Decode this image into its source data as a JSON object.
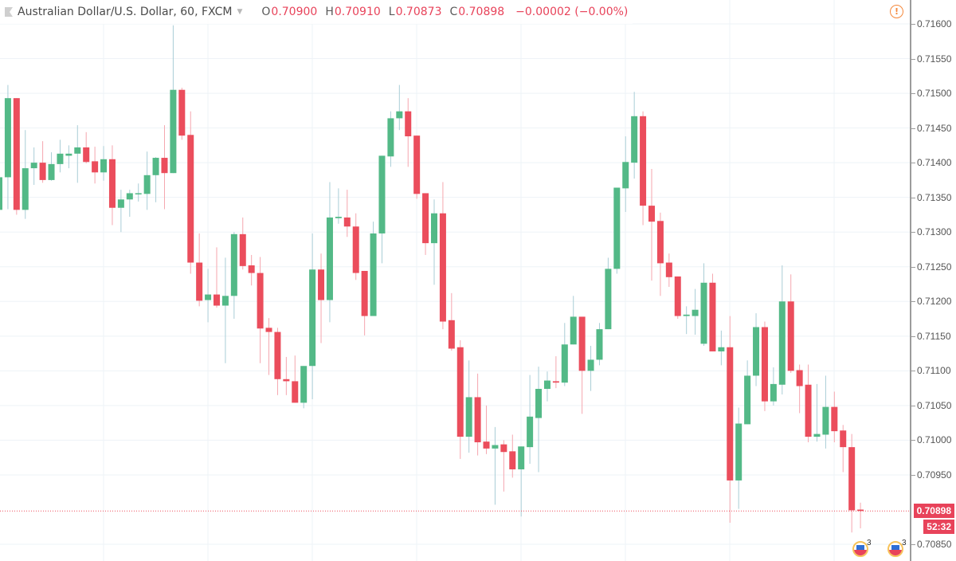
{
  "header": {
    "symbol_title": "Australian Dollar/U.S. Dollar, 60, FXCM",
    "open_label": "O",
    "open": "0.70900",
    "high_label": "H",
    "high": "0.70910",
    "low_label": "L",
    "low": "0.70873",
    "close_label": "C",
    "close": "0.70898",
    "change": "−0.00002 (−0.00%)",
    "warning_icon": "!"
  },
  "price_axis": {
    "ticks": [
      "0.71600",
      "0.71550",
      "0.71500",
      "0.71450",
      "0.71400",
      "0.71350",
      "0.71300",
      "0.71250",
      "0.71200",
      "0.71150",
      "0.71100",
      "0.71050",
      "0.71000",
      "0.70950",
      "0.70850"
    ],
    "current_price": "0.70898",
    "countdown": "52:32"
  },
  "events": [
    {
      "icon": "us-flag-icon",
      "count": "3"
    },
    {
      "icon": "us-flag-icon",
      "count": "3"
    }
  ],
  "colors": {
    "up": "#53b987",
    "down": "#eb4d5c",
    "up_wick": "#a9cdd6",
    "down_wick": "#f5a6ae",
    "grid": "#eef3f7",
    "price_line": "#eb4d5c"
  },
  "chart_data": {
    "type": "candlestick",
    "title": "Australian Dollar/U.S. Dollar, 60, FXCM",
    "interval": "60",
    "ylim": [
      0.70835,
      0.7163
    ],
    "y_ticks": [
      0.7085,
      0.7095,
      0.71,
      0.7105,
      0.711,
      0.7115,
      0.712,
      0.7125,
      0.713,
      0.7135,
      0.714,
      0.7145,
      0.715,
      0.7155,
      0.716
    ],
    "grid": true,
    "last_price": 0.70898,
    "candles": [
      {
        "o": 0.71332,
        "h": 0.714,
        "l": 0.7132,
        "c": 0.71379
      },
      {
        "o": 0.71379,
        "h": 0.71512,
        "l": 0.71333,
        "c": 0.71493
      },
      {
        "o": 0.71493,
        "h": 0.71493,
        "l": 0.71325,
        "c": 0.71332
      },
      {
        "o": 0.71332,
        "h": 0.71447,
        "l": 0.71319,
        "c": 0.71392
      },
      {
        "o": 0.71392,
        "h": 0.71422,
        "l": 0.71368,
        "c": 0.714
      },
      {
        "o": 0.714,
        "h": 0.71431,
        "l": 0.71371,
        "c": 0.71375
      },
      {
        "o": 0.71375,
        "h": 0.71415,
        "l": 0.71374,
        "c": 0.71398
      },
      {
        "o": 0.71398,
        "h": 0.71433,
        "l": 0.71386,
        "c": 0.71413
      },
      {
        "o": 0.7141,
        "h": 0.71425,
        "l": 0.71392,
        "c": 0.71413
      },
      {
        "o": 0.71413,
        "h": 0.71454,
        "l": 0.71371,
        "c": 0.71422
      },
      {
        "o": 0.71422,
        "h": 0.71444,
        "l": 0.71399,
        "c": 0.71401
      },
      {
        "o": 0.71402,
        "h": 0.71423,
        "l": 0.7137,
        "c": 0.71386
      },
      {
        "o": 0.71386,
        "h": 0.71424,
        "l": 0.71374,
        "c": 0.71405
      },
      {
        "o": 0.71405,
        "h": 0.71425,
        "l": 0.7131,
        "c": 0.71335
      },
      {
        "o": 0.71335,
        "h": 0.71361,
        "l": 0.713,
        "c": 0.71347
      },
      {
        "o": 0.71347,
        "h": 0.71361,
        "l": 0.71322,
        "c": 0.71356
      },
      {
        "o": 0.71355,
        "h": 0.7137,
        "l": 0.71344,
        "c": 0.71356
      },
      {
        "o": 0.71355,
        "h": 0.71416,
        "l": 0.71332,
        "c": 0.71382
      },
      {
        "o": 0.71382,
        "h": 0.71408,
        "l": 0.71343,
        "c": 0.71407
      },
      {
        "o": 0.71407,
        "h": 0.71454,
        "l": 0.71333,
        "c": 0.71385
      },
      {
        "o": 0.71385,
        "h": 0.71598,
        "l": 0.71385,
        "c": 0.71505
      },
      {
        "o": 0.71505,
        "h": 0.71508,
        "l": 0.71433,
        "c": 0.71439
      },
      {
        "o": 0.7144,
        "h": 0.71474,
        "l": 0.7124,
        "c": 0.71256
      },
      {
        "o": 0.71256,
        "h": 0.71298,
        "l": 0.71193,
        "c": 0.71201
      },
      {
        "o": 0.71202,
        "h": 0.71247,
        "l": 0.7117,
        "c": 0.7121
      },
      {
        "o": 0.7121,
        "h": 0.71278,
        "l": 0.71191,
        "c": 0.71194
      },
      {
        "o": 0.71194,
        "h": 0.71263,
        "l": 0.71111,
        "c": 0.71208
      },
      {
        "o": 0.71208,
        "h": 0.713,
        "l": 0.71175,
        "c": 0.71297
      },
      {
        "o": 0.71297,
        "h": 0.71321,
        "l": 0.71246,
        "c": 0.71251
      },
      {
        "o": 0.71252,
        "h": 0.71267,
        "l": 0.71223,
        "c": 0.71241
      },
      {
        "o": 0.71241,
        "h": 0.71264,
        "l": 0.71111,
        "c": 0.71161
      },
      {
        "o": 0.71162,
        "h": 0.71176,
        "l": 0.71094,
        "c": 0.71156
      },
      {
        "o": 0.71156,
        "h": 0.71162,
        "l": 0.71065,
        "c": 0.71088
      },
      {
        "o": 0.71088,
        "h": 0.7112,
        "l": 0.71065,
        "c": 0.71085
      },
      {
        "o": 0.71085,
        "h": 0.71122,
        "l": 0.71054,
        "c": 0.71054
      },
      {
        "o": 0.71054,
        "h": 0.71107,
        "l": 0.71046,
        "c": 0.71107
      },
      {
        "o": 0.71107,
        "h": 0.71298,
        "l": 0.71059,
        "c": 0.71246
      },
      {
        "o": 0.71246,
        "h": 0.71269,
        "l": 0.7114,
        "c": 0.71202
      },
      {
        "o": 0.71202,
        "h": 0.71372,
        "l": 0.7117,
        "c": 0.71321
      },
      {
        "o": 0.7132,
        "h": 0.71363,
        "l": 0.71312,
        "c": 0.71322
      },
      {
        "o": 0.71321,
        "h": 0.71361,
        "l": 0.71293,
        "c": 0.71308
      },
      {
        "o": 0.71308,
        "h": 0.71327,
        "l": 0.71231,
        "c": 0.71241
      },
      {
        "o": 0.71244,
        "h": 0.71244,
        "l": 0.71151,
        "c": 0.71179
      },
      {
        "o": 0.71179,
        "h": 0.71315,
        "l": 0.71216,
        "c": 0.71298
      },
      {
        "o": 0.71298,
        "h": 0.7141,
        "l": 0.71255,
        "c": 0.7141
      },
      {
        "o": 0.71409,
        "h": 0.71474,
        "l": 0.71394,
        "c": 0.71464
      },
      {
        "o": 0.71464,
        "h": 0.71512,
        "l": 0.71447,
        "c": 0.71474
      },
      {
        "o": 0.71474,
        "h": 0.71493,
        "l": 0.71394,
        "c": 0.71438
      },
      {
        "o": 0.71439,
        "h": 0.71439,
        "l": 0.71348,
        "c": 0.71355
      },
      {
        "o": 0.71356,
        "h": 0.71356,
        "l": 0.71267,
        "c": 0.71284
      },
      {
        "o": 0.71284,
        "h": 0.71347,
        "l": 0.71224,
        "c": 0.71327
      },
      {
        "o": 0.71327,
        "h": 0.71372,
        "l": 0.7116,
        "c": 0.71171
      },
      {
        "o": 0.71173,
        "h": 0.71212,
        "l": 0.71129,
        "c": 0.71132
      },
      {
        "o": 0.71134,
        "h": 0.71144,
        "l": 0.70973,
        "c": 0.71005
      },
      {
        "o": 0.71005,
        "h": 0.71115,
        "l": 0.70982,
        "c": 0.71062
      },
      {
        "o": 0.71062,
        "h": 0.71096,
        "l": 0.70978,
        "c": 0.70997
      },
      {
        "o": 0.70998,
        "h": 0.7105,
        "l": 0.7098,
        "c": 0.70988
      },
      {
        "o": 0.70988,
        "h": 0.71019,
        "l": 0.70907,
        "c": 0.70993
      },
      {
        "o": 0.70994,
        "h": 0.71,
        "l": 0.70926,
        "c": 0.70983
      },
      {
        "o": 0.70984,
        "h": 0.71008,
        "l": 0.70946,
        "c": 0.70958
      },
      {
        "o": 0.70958,
        "h": 0.70991,
        "l": 0.7089,
        "c": 0.70991
      },
      {
        "o": 0.7099,
        "h": 0.71094,
        "l": 0.70966,
        "c": 0.71034
      },
      {
        "o": 0.71032,
        "h": 0.71106,
        "l": 0.70954,
        "c": 0.71074
      },
      {
        "o": 0.71074,
        "h": 0.71099,
        "l": 0.71056,
        "c": 0.71086
      },
      {
        "o": 0.71085,
        "h": 0.71121,
        "l": 0.71075,
        "c": 0.71083
      },
      {
        "o": 0.71083,
        "h": 0.71169,
        "l": 0.71078,
        "c": 0.71138
      },
      {
        "o": 0.71138,
        "h": 0.71208,
        "l": 0.71138,
        "c": 0.71178
      },
      {
        "o": 0.71178,
        "h": 0.71178,
        "l": 0.71038,
        "c": 0.711
      },
      {
        "o": 0.711,
        "h": 0.71136,
        "l": 0.71071,
        "c": 0.71116
      },
      {
        "o": 0.71116,
        "h": 0.71169,
        "l": 0.71108,
        "c": 0.7116
      },
      {
        "o": 0.7116,
        "h": 0.71263,
        "l": 0.7116,
        "c": 0.71247
      },
      {
        "o": 0.71247,
        "h": 0.71364,
        "l": 0.7124,
        "c": 0.71364
      },
      {
        "o": 0.71363,
        "h": 0.71438,
        "l": 0.71329,
        "c": 0.71401
      },
      {
        "o": 0.714,
        "h": 0.71502,
        "l": 0.71377,
        "c": 0.71467
      },
      {
        "o": 0.71467,
        "h": 0.71474,
        "l": 0.7131,
        "c": 0.71338
      },
      {
        "o": 0.71338,
        "h": 0.71391,
        "l": 0.7123,
        "c": 0.71315
      },
      {
        "o": 0.71316,
        "h": 0.71328,
        "l": 0.71208,
        "c": 0.71255
      },
      {
        "o": 0.71256,
        "h": 0.71269,
        "l": 0.71221,
        "c": 0.71235
      },
      {
        "o": 0.71236,
        "h": 0.71236,
        "l": 0.71175,
        "c": 0.71179
      },
      {
        "o": 0.71179,
        "h": 0.71193,
        "l": 0.71153,
        "c": 0.71181
      },
      {
        "o": 0.71179,
        "h": 0.71218,
        "l": 0.71152,
        "c": 0.71188
      },
      {
        "o": 0.71139,
        "h": 0.71255,
        "l": 0.71136,
        "c": 0.71227
      },
      {
        "o": 0.71227,
        "h": 0.7124,
        "l": 0.71128,
        "c": 0.71128
      },
      {
        "o": 0.71128,
        "h": 0.71158,
        "l": 0.71108,
        "c": 0.71134
      },
      {
        "o": 0.71134,
        "h": 0.71179,
        "l": 0.70881,
        "c": 0.70942
      },
      {
        "o": 0.70942,
        "h": 0.71047,
        "l": 0.70901,
        "c": 0.71024
      },
      {
        "o": 0.71023,
        "h": 0.71115,
        "l": 0.71023,
        "c": 0.71093
      },
      {
        "o": 0.71093,
        "h": 0.71183,
        "l": 0.71078,
        "c": 0.71163
      },
      {
        "o": 0.71163,
        "h": 0.71171,
        "l": 0.71042,
        "c": 0.71056
      },
      {
        "o": 0.71056,
        "h": 0.71105,
        "l": 0.7105,
        "c": 0.71081
      },
      {
        "o": 0.7108,
        "h": 0.71252,
        "l": 0.71066,
        "c": 0.712
      },
      {
        "o": 0.712,
        "h": 0.71239,
        "l": 0.71097,
        "c": 0.711
      },
      {
        "o": 0.71101,
        "h": 0.71109,
        "l": 0.71039,
        "c": 0.71078
      },
      {
        "o": 0.7108,
        "h": 0.71109,
        "l": 0.70997,
        "c": 0.71005
      },
      {
        "o": 0.71005,
        "h": 0.71081,
        "l": 0.70998,
        "c": 0.71009
      },
      {
        "o": 0.71008,
        "h": 0.71093,
        "l": 0.70988,
        "c": 0.71048
      },
      {
        "o": 0.71048,
        "h": 0.7107,
        "l": 0.70997,
        "c": 0.71013
      },
      {
        "o": 0.71014,
        "h": 0.71022,
        "l": 0.70954,
        "c": 0.7099
      },
      {
        "o": 0.7099,
        "h": 0.71009,
        "l": 0.70867,
        "c": 0.70899
      },
      {
        "o": 0.709,
        "h": 0.7091,
        "l": 0.70873,
        "c": 0.70898
      }
    ]
  }
}
